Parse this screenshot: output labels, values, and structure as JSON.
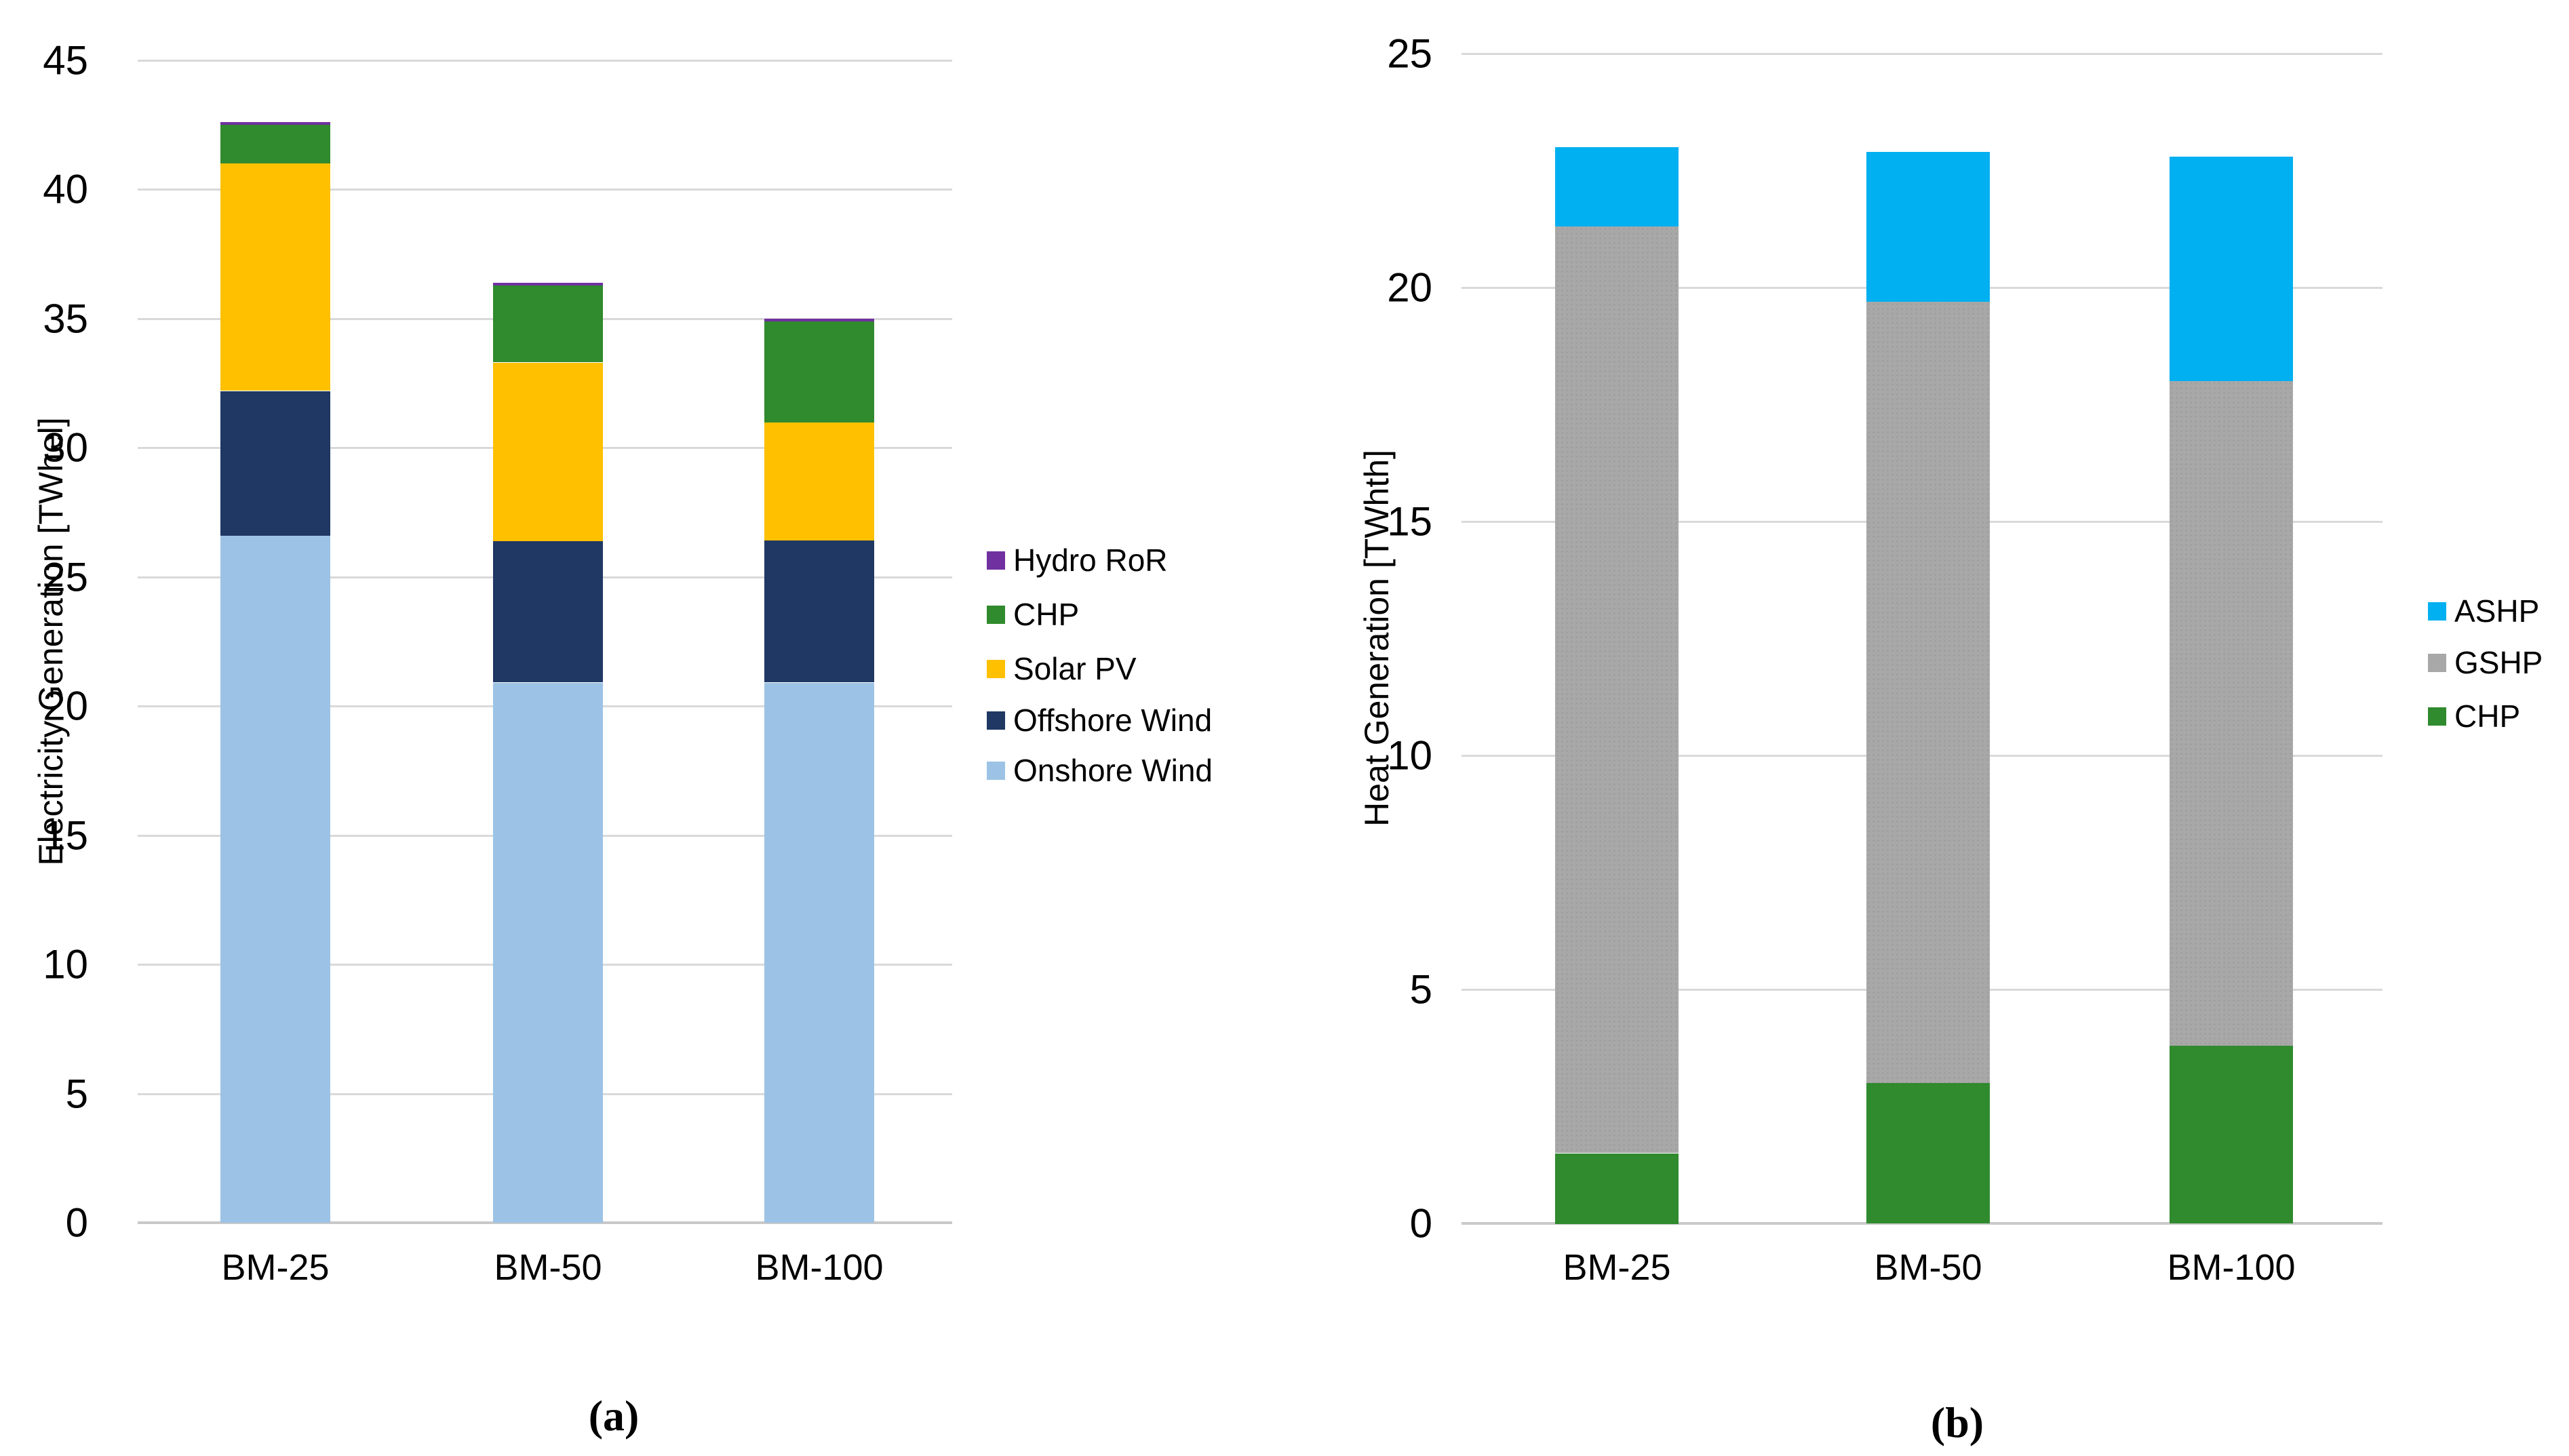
{
  "styling": {
    "background": "#ffffff",
    "gridline_color": "#d9d9d9",
    "axis_color": "#c9c9c9",
    "text_color": "#000000"
  },
  "chart_data": [
    {
      "type": "bar",
      "stacked": true,
      "caption": "(a)",
      "ylabel": "Electricity Generation [TWhel]",
      "xlabel": "",
      "ylim": [
        0,
        45
      ],
      "ytick_step": 5,
      "yticks": [
        "0",
        "5",
        "10",
        "15",
        "20",
        "25",
        "30",
        "35",
        "40",
        "45"
      ],
      "grid": true,
      "legend_position": "right",
      "categories": [
        "BM-25",
        "BM-50",
        "BM-100"
      ],
      "series": [
        {
          "name": "Onshore Wind",
          "color": "#9CC3E5",
          "values": [
            26.6,
            20.9,
            20.9
          ]
        },
        {
          "name": "Offshore Wind",
          "color": "#1F3864",
          "values": [
            5.6,
            5.5,
            5.5
          ]
        },
        {
          "name": "Solar PV",
          "color": "#FFC000",
          "values": [
            8.8,
            6.9,
            4.6
          ]
        },
        {
          "name": "CHP",
          "color": "#308A2E",
          "values": [
            1.5,
            3.0,
            3.9
          ]
        },
        {
          "name": "Hydro RoR",
          "color": "#7030A0",
          "values": [
            0.1,
            0.1,
            0.1
          ]
        }
      ],
      "legend_order": [
        "Hydro RoR",
        "CHP",
        "Solar PV",
        "Offshore Wind",
        "Onshore Wind"
      ],
      "totals": [
        42.6,
        36.4,
        35.0
      ]
    },
    {
      "type": "bar",
      "stacked": true,
      "caption": "(b)",
      "ylabel": "Heat Generation [TWhth]",
      "xlabel": "",
      "ylim": [
        0,
        25
      ],
      "ytick_step": 5,
      "yticks": [
        "0",
        "5",
        "10",
        "15",
        "20",
        "25"
      ],
      "grid": true,
      "legend_position": "right",
      "categories": [
        "BM-25",
        "BM-50",
        "BM-100"
      ],
      "series": [
        {
          "name": "CHP",
          "color": "#308A2E",
          "values": [
            1.5,
            3.0,
            3.8
          ]
        },
        {
          "name": "GSHP",
          "color": "#A8A8A8",
          "values": [
            19.8,
            16.7,
            14.2
          ],
          "textured": true
        },
        {
          "name": "ASHP",
          "color": "#00B0F0",
          "values": [
            1.7,
            3.2,
            4.8
          ]
        }
      ],
      "legend_order": [
        "ASHP",
        "GSHP",
        "CHP"
      ],
      "totals": [
        23.0,
        22.9,
        22.8
      ]
    }
  ]
}
